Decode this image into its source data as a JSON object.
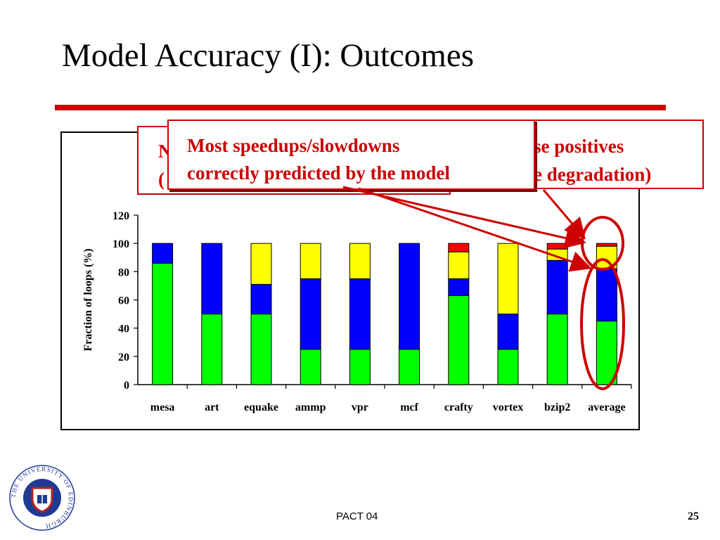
{
  "slide": {
    "title": "Model Accuracy (I): Outcomes",
    "footer": "PACT 04",
    "page_number": "25"
  },
  "callouts": {
    "back_left": {
      "line1": "N",
      "line2": "("
    },
    "right": {
      "line1": "se positives",
      "line2": "e degradation)"
    },
    "front": {
      "line1": "Most speedups/slowdowns",
      "line2": "correctly predicted by the model"
    }
  },
  "logo": {
    "text": "THE UNIVERSITY OF EDINBURGH",
    "icon": "university-crest-icon"
  },
  "chart_data": {
    "type": "bar",
    "stacked": true,
    "categories": [
      "mesa",
      "art",
      "equake",
      "ammp",
      "vpr",
      "mcf",
      "crafty",
      "vortex",
      "bzip2",
      "average"
    ],
    "series": [
      {
        "color": "#00ff00",
        "values": [
          86,
          50,
          50,
          25,
          25,
          25,
          63,
          25,
          50,
          45
        ]
      },
      {
        "color": "#0000ff",
        "values": [
          14,
          50,
          21,
          50,
          50,
          75,
          12,
          25,
          38,
          37
        ]
      },
      {
        "color": "#ffff00",
        "values": [
          0,
          0,
          29,
          25,
          25,
          0,
          19,
          50,
          8,
          16
        ]
      },
      {
        "color": "#ff0000",
        "values": [
          0,
          0,
          0,
          0,
          0,
          0,
          6,
          0,
          4,
          2
        ]
      }
    ],
    "ylabel": "Fraction of loops (%)",
    "ylim": [
      0,
      120
    ],
    "yticks": [
      0,
      20,
      40,
      60,
      80,
      100,
      120
    ],
    "annotation_color": "#cc0000"
  }
}
